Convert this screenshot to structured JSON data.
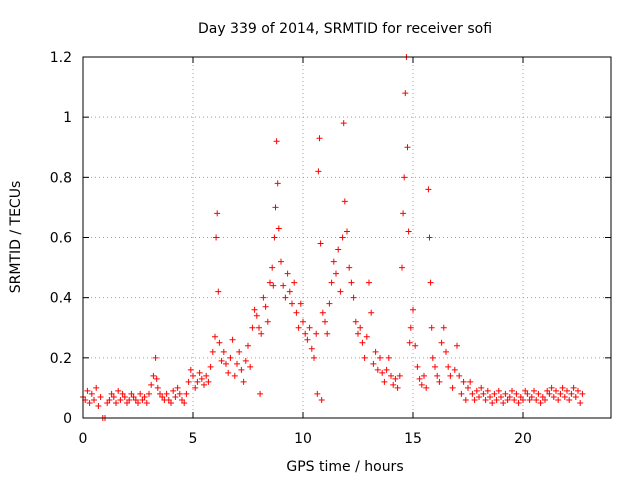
{
  "chart_data": {
    "type": "scatter",
    "title": "Day 339 of 2014, SRMTID for receiver sofi",
    "xlabel": "GPS time / hours",
    "ylabel": "SRMTID / TECUs",
    "xlim": [
      0,
      24
    ],
    "ylim": [
      0,
      1.2
    ],
    "xticks": [
      0,
      5,
      10,
      15,
      20
    ],
    "xtick_labels": [
      "0",
      "5",
      "10",
      "15",
      "20"
    ],
    "yticks": [
      0,
      0.2,
      0.4,
      0.6,
      0.8,
      1.0,
      1.2
    ],
    "ytick_labels": [
      "0",
      "0.2",
      "0.4",
      "0.6",
      "0.8",
      "1",
      "1.2"
    ],
    "grid": true,
    "marker": "plus",
    "series": [
      {
        "name": "SRMTID",
        "color": "#ff0000",
        "points": [
          [
            0.0,
            0.07
          ],
          [
            0.1,
            0.06
          ],
          [
            0.2,
            0.09
          ],
          [
            0.3,
            0.05
          ],
          [
            0.4,
            0.08
          ],
          [
            0.5,
            0.06
          ],
          [
            0.6,
            0.1
          ],
          [
            0.7,
            0.04
          ],
          [
            0.8,
            0.07
          ],
          [
            0.9,
            0.0
          ],
          [
            1.0,
            0.0
          ],
          [
            1.1,
            0.05
          ],
          [
            1.2,
            0.06
          ],
          [
            1.3,
            0.08
          ],
          [
            1.4,
            0.07
          ],
          [
            1.5,
            0.05
          ],
          [
            1.6,
            0.09
          ],
          [
            1.7,
            0.06
          ],
          [
            1.8,
            0.08
          ],
          [
            1.9,
            0.07
          ],
          [
            2.0,
            0.05
          ],
          [
            2.1,
            0.06
          ],
          [
            2.2,
            0.08
          ],
          [
            2.3,
            0.07
          ],
          [
            2.4,
            0.06
          ],
          [
            2.5,
            0.05
          ],
          [
            2.6,
            0.08
          ],
          [
            2.7,
            0.06
          ],
          [
            2.8,
            0.07
          ],
          [
            2.9,
            0.05
          ],
          [
            3.0,
            0.08
          ],
          [
            3.1,
            0.11
          ],
          [
            3.2,
            0.14
          ],
          [
            3.3,
            0.2
          ],
          [
            3.35,
            0.13
          ],
          [
            3.4,
            0.1
          ],
          [
            3.5,
            0.08
          ],
          [
            3.6,
            0.07
          ],
          [
            3.7,
            0.06
          ],
          [
            3.8,
            0.08
          ],
          [
            3.9,
            0.06
          ],
          [
            4.0,
            0.05
          ],
          [
            4.1,
            0.09
          ],
          [
            4.2,
            0.07
          ],
          [
            4.3,
            0.1
          ],
          [
            4.4,
            0.08
          ],
          [
            4.5,
            0.06
          ],
          [
            4.6,
            0.05
          ],
          [
            4.7,
            0.08
          ],
          [
            4.8,
            0.12
          ],
          [
            4.9,
            0.16
          ],
          [
            5.0,
            0.14
          ],
          [
            5.1,
            0.1
          ],
          [
            5.2,
            0.12
          ],
          [
            5.3,
            0.15
          ],
          [
            5.4,
            0.13
          ],
          [
            5.5,
            0.11
          ],
          [
            5.6,
            0.14
          ],
          [
            5.7,
            0.12
          ],
          [
            5.8,
            0.17
          ],
          [
            5.9,
            0.22
          ],
          [
            6.0,
            0.27
          ],
          [
            6.05,
            0.6
          ],
          [
            6.1,
            0.68
          ],
          [
            6.15,
            0.42
          ],
          [
            6.2,
            0.25
          ],
          [
            6.3,
            0.19
          ],
          [
            6.4,
            0.22
          ],
          [
            6.5,
            0.18
          ],
          [
            6.6,
            0.15
          ],
          [
            6.7,
            0.2
          ],
          [
            6.8,
            0.26
          ],
          [
            6.9,
            0.14
          ],
          [
            7.0,
            0.18
          ],
          [
            7.1,
            0.22
          ],
          [
            7.2,
            0.16
          ],
          [
            7.3,
            0.12
          ],
          [
            7.4,
            0.19
          ],
          [
            7.5,
            0.24
          ],
          [
            7.6,
            0.17
          ],
          [
            7.7,
            0.3
          ],
          [
            7.8,
            0.36
          ],
          [
            7.9,
            0.34
          ],
          [
            8.0,
            0.3
          ],
          [
            8.05,
            0.08
          ],
          [
            8.1,
            0.28
          ],
          [
            8.2,
            0.4
          ],
          [
            8.3,
            0.37
          ],
          [
            8.4,
            0.32
          ],
          [
            8.5,
            0.45
          ],
          [
            8.6,
            0.5
          ],
          [
            8.65,
            0.44
          ],
          [
            8.7,
            0.6
          ],
          [
            8.75,
            0.7
          ],
          [
            8.8,
            0.92
          ],
          [
            8.85,
            0.78
          ],
          [
            8.9,
            0.63
          ],
          [
            9.0,
            0.52
          ],
          [
            9.1,
            0.44
          ],
          [
            9.2,
            0.4
          ],
          [
            9.3,
            0.48
          ],
          [
            9.4,
            0.42
          ],
          [
            9.5,
            0.38
          ],
          [
            9.6,
            0.45
          ],
          [
            9.7,
            0.35
          ],
          [
            9.8,
            0.3
          ],
          [
            9.9,
            0.38
          ],
          [
            10.0,
            0.32
          ],
          [
            10.1,
            0.28
          ],
          [
            10.2,
            0.26
          ],
          [
            10.3,
            0.3
          ],
          [
            10.4,
            0.23
          ],
          [
            10.5,
            0.2
          ],
          [
            10.6,
            0.28
          ],
          [
            10.65,
            0.08
          ],
          [
            10.7,
            0.82
          ],
          [
            10.75,
            0.93
          ],
          [
            10.8,
            0.58
          ],
          [
            10.85,
            0.06
          ],
          [
            10.9,
            0.35
          ],
          [
            11.0,
            0.32
          ],
          [
            11.1,
            0.28
          ],
          [
            11.2,
            0.38
          ],
          [
            11.3,
            0.45
          ],
          [
            11.4,
            0.52
          ],
          [
            11.5,
            0.48
          ],
          [
            11.6,
            0.56
          ],
          [
            11.7,
            0.42
          ],
          [
            11.8,
            0.6
          ],
          [
            11.85,
            0.98
          ],
          [
            11.9,
            0.72
          ],
          [
            12.0,
            0.62
          ],
          [
            12.1,
            0.5
          ],
          [
            12.2,
            0.45
          ],
          [
            12.3,
            0.4
          ],
          [
            12.4,
            0.32
          ],
          [
            12.5,
            0.28
          ],
          [
            12.6,
            0.3
          ],
          [
            12.7,
            0.25
          ],
          [
            12.8,
            0.2
          ],
          [
            12.9,
            0.27
          ],
          [
            13.0,
            0.45
          ],
          [
            13.1,
            0.35
          ],
          [
            13.2,
            0.18
          ],
          [
            13.3,
            0.22
          ],
          [
            13.4,
            0.16
          ],
          [
            13.5,
            0.2
          ],
          [
            13.6,
            0.15
          ],
          [
            13.7,
            0.12
          ],
          [
            13.8,
            0.16
          ],
          [
            13.9,
            0.2
          ],
          [
            14.0,
            0.14
          ],
          [
            14.1,
            0.11
          ],
          [
            14.2,
            0.13
          ],
          [
            14.3,
            0.1
          ],
          [
            14.4,
            0.14
          ],
          [
            14.5,
            0.5
          ],
          [
            14.55,
            0.68
          ],
          [
            14.6,
            0.8
          ],
          [
            14.65,
            1.08
          ],
          [
            14.7,
            1.2
          ],
          [
            14.75,
            0.9
          ],
          [
            14.8,
            0.62
          ],
          [
            14.85,
            0.25
          ],
          [
            14.9,
            0.3
          ],
          [
            15.0,
            0.36
          ],
          [
            15.1,
            0.24
          ],
          [
            15.2,
            0.17
          ],
          [
            15.3,
            0.13
          ],
          [
            15.4,
            0.11
          ],
          [
            15.5,
            0.14
          ],
          [
            15.6,
            0.1
          ],
          [
            15.7,
            0.76
          ],
          [
            15.75,
            0.6
          ],
          [
            15.8,
            0.45
          ],
          [
            15.85,
            0.3
          ],
          [
            15.9,
            0.2
          ],
          [
            16.0,
            0.17
          ],
          [
            16.1,
            0.14
          ],
          [
            16.2,
            0.12
          ],
          [
            16.3,
            0.25
          ],
          [
            16.4,
            0.3
          ],
          [
            16.5,
            0.22
          ],
          [
            16.6,
            0.17
          ],
          [
            16.7,
            0.14
          ],
          [
            16.8,
            0.1
          ],
          [
            16.9,
            0.16
          ],
          [
            17.0,
            0.24
          ],
          [
            17.1,
            0.14
          ],
          [
            17.2,
            0.08
          ],
          [
            17.3,
            0.12
          ],
          [
            17.4,
            0.06
          ],
          [
            17.5,
            0.1
          ],
          [
            17.6,
            0.12
          ],
          [
            17.7,
            0.08
          ],
          [
            17.8,
            0.06
          ],
          [
            17.9,
            0.09
          ],
          [
            18.0,
            0.07
          ],
          [
            18.1,
            0.1
          ],
          [
            18.2,
            0.08
          ],
          [
            18.3,
            0.06
          ],
          [
            18.4,
            0.09
          ],
          [
            18.5,
            0.07
          ],
          [
            18.6,
            0.05
          ],
          [
            18.7,
            0.08
          ],
          [
            18.8,
            0.06
          ],
          [
            18.9,
            0.09
          ],
          [
            19.0,
            0.07
          ],
          [
            19.1,
            0.05
          ],
          [
            19.2,
            0.08
          ],
          [
            19.3,
            0.06
          ],
          [
            19.4,
            0.07
          ],
          [
            19.5,
            0.09
          ],
          [
            19.6,
            0.06
          ],
          [
            19.7,
            0.08
          ],
          [
            19.8,
            0.05
          ],
          [
            19.9,
            0.07
          ],
          [
            20.0,
            0.06
          ],
          [
            20.1,
            0.09
          ],
          [
            20.2,
            0.08
          ],
          [
            20.3,
            0.06
          ],
          [
            20.4,
            0.07
          ],
          [
            20.5,
            0.09
          ],
          [
            20.6,
            0.06
          ],
          [
            20.7,
            0.08
          ],
          [
            20.8,
            0.05
          ],
          [
            20.9,
            0.07
          ],
          [
            21.0,
            0.06
          ],
          [
            21.1,
            0.09
          ],
          [
            21.2,
            0.08
          ],
          [
            21.3,
            0.1
          ],
          [
            21.4,
            0.07
          ],
          [
            21.5,
            0.09
          ],
          [
            21.6,
            0.06
          ],
          [
            21.7,
            0.08
          ],
          [
            21.8,
            0.1
          ],
          [
            21.9,
            0.07
          ],
          [
            22.0,
            0.09
          ],
          [
            22.1,
            0.06
          ],
          [
            22.2,
            0.08
          ],
          [
            22.3,
            0.1
          ],
          [
            22.4,
            0.07
          ],
          [
            22.5,
            0.09
          ],
          [
            22.6,
            0.05
          ],
          [
            22.7,
            0.08
          ]
        ]
      }
    ]
  }
}
